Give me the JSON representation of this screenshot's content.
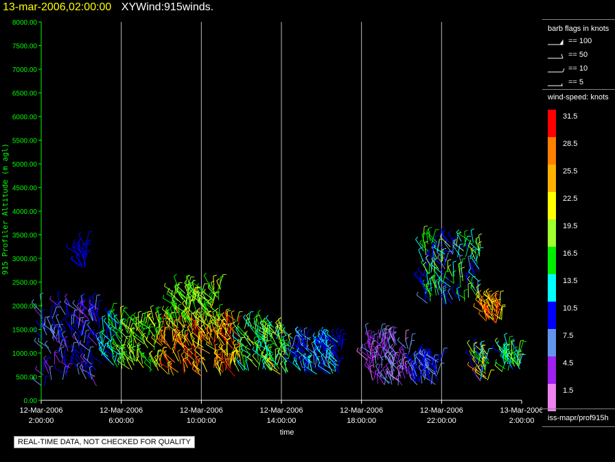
{
  "header": {
    "date": "13-mar-2006,02:00:00",
    "title": "XYWind:915winds."
  },
  "chart_data": {
    "type": "scatter",
    "title": "XYWind:915winds.",
    "ylabel": "915 Profiler Altitude (m agl)",
    "xlabel": "time",
    "ylim": [
      0,
      8000
    ],
    "yticks": [
      "0.00",
      "500.00",
      "1000.00",
      "1500.00",
      "2000.00",
      "2500.00",
      "3000.00",
      "3500.00",
      "4000.00",
      "4500.00",
      "5000.00",
      "5500.00",
      "6000.00",
      "6500.00",
      "7000.00",
      "7500.00",
      "8000.00"
    ],
    "xlim_hours": [
      0,
      24
    ],
    "xticks": [
      {
        "date": "12-Mar-2006",
        "time": "2:00:00"
      },
      {
        "date": "12-Mar-2006",
        "time": "6:00:00"
      },
      {
        "date": "12-Mar-2006",
        "time": "10:00:00"
      },
      {
        "date": "12-Mar-2006",
        "time": "14:00:00"
      },
      {
        "date": "12-Mar-2006",
        "time": "18:00:00"
      },
      {
        "date": "12-Mar-2006",
        "time": "22:00:00"
      },
      {
        "date": "13-Mar-2006",
        "time": "2:00:00"
      }
    ],
    "grid": "vertical",
    "wind_clusters": [
      {
        "t": [
          0.0,
          3.0
        ],
        "alt": [
          300,
          2000
        ],
        "speed": [
          5,
          12
        ]
      },
      {
        "t": [
          1.9,
          2.3
        ],
        "alt": [
          2800,
          3300
        ],
        "speed": [
          9,
          12
        ]
      },
      {
        "t": [
          3.0,
          4.0
        ],
        "alt": [
          700,
          1800
        ],
        "speed": [
          10,
          17
        ]
      },
      {
        "t": [
          4.0,
          6.0
        ],
        "alt": [
          600,
          1700
        ],
        "speed": [
          15,
          23
        ]
      },
      {
        "t": [
          6.0,
          10.0
        ],
        "alt": [
          500,
          1700
        ],
        "speed": [
          20,
          32
        ]
      },
      {
        "t": [
          6.5,
          9.0
        ],
        "alt": [
          1500,
          2400
        ],
        "speed": [
          15,
          22
        ]
      },
      {
        "t": [
          10.0,
          12.5
        ],
        "alt": [
          550,
          1600
        ],
        "speed": [
          12,
          22
        ]
      },
      {
        "t": [
          12.5,
          15.0
        ],
        "alt": [
          550,
          1300
        ],
        "speed": [
          8,
          14
        ]
      },
      {
        "t": [
          16.3,
          18.5
        ],
        "alt": [
          300,
          1300
        ],
        "speed": [
          2,
          8
        ]
      },
      {
        "t": [
          18.5,
          20.0
        ],
        "alt": [
          300,
          900
        ],
        "speed": [
          7,
          11
        ]
      },
      {
        "t": [
          19.0,
          22.0
        ],
        "alt": [
          2000,
          3400
        ],
        "speed": [
          8,
          20
        ]
      },
      {
        "t": [
          22.0,
          23.0
        ],
        "alt": [
          1600,
          2100
        ],
        "speed": [
          22,
          31
        ]
      },
      {
        "t": [
          21.6,
          22.4
        ],
        "alt": [
          400,
          1000
        ],
        "speed": [
          5,
          30
        ]
      },
      {
        "t": [
          23.0,
          24.0
        ],
        "alt": [
          600,
          1200
        ],
        "speed": [
          11,
          20
        ]
      }
    ]
  },
  "legend": {
    "barb_title": "barb flags in knots",
    "barbs": [
      "== 100",
      "== 50",
      "== 10",
      "== 5"
    ],
    "speed_title": "wind-speed: knots",
    "speed_levels": [
      {
        "label": "31.5",
        "color": "#ff0000"
      },
      {
        "label": "28.5",
        "color": "#ff7f00"
      },
      {
        "label": "25.5",
        "color": "#ffb000"
      },
      {
        "label": "22.5",
        "color": "#ffff00"
      },
      {
        "label": "19.5",
        "color": "#a0ff30"
      },
      {
        "label": "16.5",
        "color": "#00ee00"
      },
      {
        "label": "13.5",
        "color": "#00ffff"
      },
      {
        "label": "10.5",
        "color": "#0000ff"
      },
      {
        "label": "7.5",
        "color": "#6495ed"
      },
      {
        "label": "4.5",
        "color": "#a020f0"
      },
      {
        "label": "1.5",
        "color": "#ee82ee"
      }
    ],
    "source": "iss-mapr/prof915h"
  },
  "footer": "REAL-TIME DATA, NOT CHECKED FOR QUALITY"
}
